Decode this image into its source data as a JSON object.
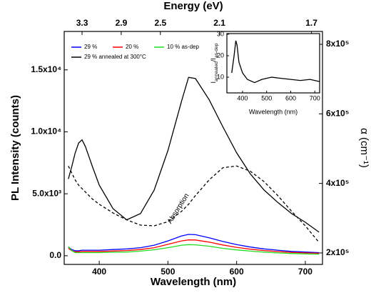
{
  "chart_data": [
    {
      "type": "line",
      "x_label": "Wavelength (nm)",
      "y_label": "PL Intensity (counts)",
      "x2_label": "Energy (eV)",
      "y2_label": "α (cm⁻¹)",
      "x": [
        355,
        360,
        365,
        370,
        375,
        380,
        390,
        400,
        420,
        440,
        460,
        480,
        500,
        520,
        530,
        540,
        560,
        580,
        600,
        620,
        640,
        660,
        680,
        700,
        720
      ],
      "series": [
        {
          "name": "29 %",
          "color": "#0000ff",
          "values": [
            700,
            500,
            400,
            400,
            450,
            450,
            450,
            450,
            500,
            550,
            650,
            850,
            1200,
            1600,
            1720,
            1700,
            1450,
            1150,
            900,
            700,
            550,
            450,
            350,
            300,
            250
          ]
        },
        {
          "name": "20 %",
          "color": "#ff0000",
          "values": [
            600,
            400,
            320,
            320,
            350,
            350,
            350,
            350,
            380,
            420,
            500,
            650,
            920,
            1200,
            1280,
            1270,
            1100,
            870,
            680,
            530,
            420,
            340,
            270,
            230,
            200
          ]
        },
        {
          "name": "10 % as-dep",
          "color": "#22dd22",
          "values": [
            750,
            400,
            250,
            250,
            250,
            250,
            250,
            250,
            280,
            300,
            370,
            480,
            650,
            850,
            900,
            880,
            770,
            600,
            470,
            370,
            290,
            230,
            180,
            150,
            130
          ]
        },
        {
          "name": "29 % annealed at 300°C",
          "color": "#000000",
          "values": [
            6200,
            7200,
            8300,
            9100,
            9350,
            8800,
            7200,
            5700,
            3800,
            2900,
            3400,
            5300,
            8500,
            12500,
            14400,
            14300,
            12600,
            10400,
            8300,
            6600,
            5300,
            4300,
            3400,
            2700,
            1900
          ]
        },
        {
          "name": "Absorption",
          "color": "#000000",
          "line_style": "dashed",
          "axis": "y2",
          "values": [
            450000,
            430000,
            410000,
            395000,
            385000,
            375000,
            355000,
            340000,
            315000,
            295000,
            280000,
            278000,
            290000,
            320000,
            340000,
            365000,
            410000,
            445000,
            450000,
            435000,
            405000,
            365000,
            320000,
            278000,
            230000
          ]
        }
      ],
      "xlim": [
        349,
        725
      ],
      "xticks": [
        400,
        500,
        600,
        700
      ],
      "ylim": [
        -700,
        18100
      ],
      "yticks": [
        {
          "value": 0,
          "label": "0.0"
        },
        {
          "value": 5000,
          "label": "5.0x10³"
        },
        {
          "value": 10000,
          "label": "1.0x10⁴"
        },
        {
          "value": 15000,
          "label": "1.5x10⁴"
        }
      ],
      "y2lim": [
        167000,
        837000
      ],
      "y2ticks": [
        {
          "value": 200000,
          "label": "2x10⁵"
        },
        {
          "value": 400000,
          "label": "4x10⁵"
        },
        {
          "value": 600000,
          "label": "6x10⁵"
        },
        {
          "value": 800000,
          "label": "8x10⁵"
        }
      ],
      "x2ticks": [
        {
          "value": 375,
          "label": "3.3"
        },
        {
          "value": 432,
          "label": "2.9"
        },
        {
          "value": 489,
          "label": "2.5"
        },
        {
          "value": 575,
          "label": "2.1"
        },
        {
          "value": 709,
          "label": "1.7"
        }
      ],
      "legend": "upper left"
    },
    {
      "type": "line",
      "x_label": "Wavelength (nm)",
      "y_label": [
        "I",
        "annealed",
        "/I",
        "as-dep"
      ],
      "x": [
        355,
        365,
        372,
        377,
        385,
        400,
        420,
        450,
        480,
        520,
        560,
        600,
        640,
        680,
        720
      ],
      "series": [
        {
          "color": "#000000",
          "values": [
            12,
            20,
            27,
            25,
            17,
            12,
            9,
            7.5,
            9,
            10,
            9.5,
            9,
            8.5,
            9,
            8
          ]
        }
      ],
      "xlim": [
        335,
        720
      ],
      "xticks": [
        400,
        500,
        600,
        700
      ],
      "ylim": [
        2.7,
        30.3
      ],
      "yticks": [
        10,
        20,
        30
      ]
    }
  ]
}
